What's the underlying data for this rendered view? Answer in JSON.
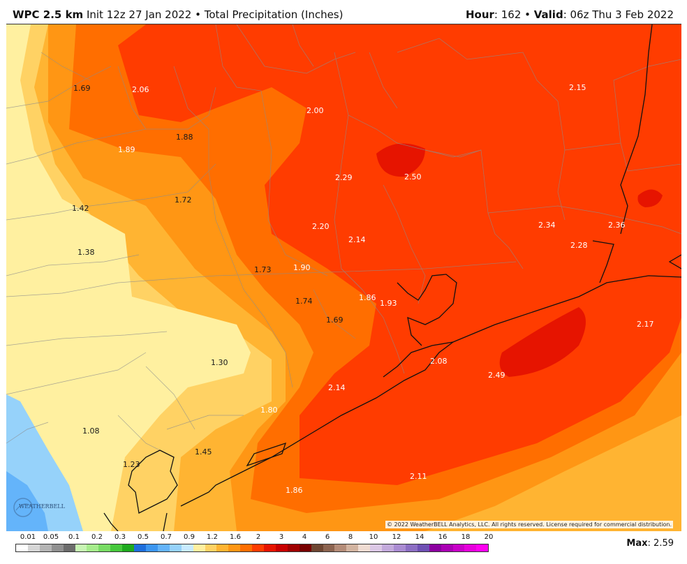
{
  "header": {
    "model": "WPC 2.5 km",
    "init": " Init 12z 27 Jan 2022 • Total Precipitation (Inches)",
    "hour_label": "Hour",
    "hour_value": ": 162 • ",
    "valid_label": "Valid",
    "valid_value": ": 06z Thu 3 Feb 2022"
  },
  "map": {
    "labels": [
      {
        "text": "1.69",
        "dark": true
      },
      {
        "text": "2.06",
        "dark": false
      },
      {
        "text": "2.00",
        "dark": false
      },
      {
        "text": "2.15",
        "dark": false
      },
      {
        "text": "1.88",
        "dark": true
      },
      {
        "text": "1.89",
        "dark": false
      },
      {
        "text": "2.29",
        "dark": false
      },
      {
        "text": "2.50",
        "dark": false
      },
      {
        "text": "1.72",
        "dark": true
      },
      {
        "text": "1.42",
        "dark": true
      },
      {
        "text": "2.20",
        "dark": false
      },
      {
        "text": "2.34",
        "dark": false
      },
      {
        "text": "2.36",
        "dark": false
      },
      {
        "text": "2.14",
        "dark": false
      },
      {
        "text": "2.28",
        "dark": false
      },
      {
        "text": "1.38",
        "dark": true
      },
      {
        "text": "1.73",
        "dark": true
      },
      {
        "text": "1.90",
        "dark": false
      },
      {
        "text": "1.86",
        "dark": false
      },
      {
        "text": "1.93",
        "dark": false
      },
      {
        "text": "1.74",
        "dark": true
      },
      {
        "text": "1.69",
        "dark": true
      },
      {
        "text": "2.17",
        "dark": false
      },
      {
        "text": "1.30",
        "dark": true
      },
      {
        "text": "2.08",
        "dark": false
      },
      {
        "text": "2.49",
        "dark": false
      },
      {
        "text": "2.14",
        "dark": false
      },
      {
        "text": "1.80",
        "dark": false
      },
      {
        "text": "1.08",
        "dark": true
      },
      {
        "text": "1.45",
        "dark": true
      },
      {
        "text": "1.23",
        "dark": true
      },
      {
        "text": "2.11",
        "dark": false
      },
      {
        "text": "1.86",
        "dark": false
      }
    ],
    "copyright": "© 2022 WeatherBELL Analytics, LLC. All rights reserved. License required for commercial distribution.",
    "logo_text": "WEATHERBELL"
  },
  "legend": {
    "ticks": [
      "0.01",
      "0.05",
      "0.1",
      "0.2",
      "0.3",
      "0.5",
      "0.7",
      "0.9",
      "1.2",
      "1.6",
      "2",
      "3",
      "4",
      "6",
      "8",
      "10",
      "12",
      "14",
      "16",
      "18",
      "20"
    ],
    "colors": [
      "#ffffff",
      "#d6d6d6",
      "#b4b4b4",
      "#909090",
      "#6c6c6c",
      "#c8f5b4",
      "#a6ec8c",
      "#78dc64",
      "#46c83c",
      "#1eaa1e",
      "#1e6edc",
      "#3c96f0",
      "#64b4fa",
      "#96d2fa",
      "#c8ebff",
      "#fff0a0",
      "#ffd264",
      "#ffb432",
      "#ff9614",
      "#ff6e00",
      "#ff3c00",
      "#e61400",
      "#c80000",
      "#a00000",
      "#780000",
      "#6e4632",
      "#8c6450",
      "#b48c78",
      "#d2b4a0",
      "#f0dcd2",
      "#dcc8e6",
      "#c3aadc",
      "#aa8cd2",
      "#8c6ec3",
      "#6e50b4",
      "#8c00a0",
      "#aa00b4",
      "#c800c8",
      "#e600dc",
      "#ff00f0"
    ],
    "max_label": "Max",
    "max_value": ": 2.59"
  }
}
